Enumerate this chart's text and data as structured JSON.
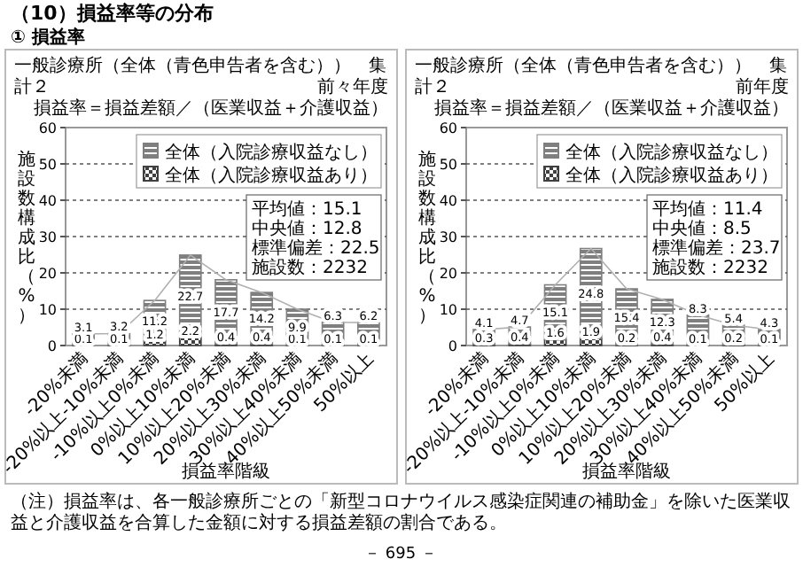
{
  "chart_data": [
    {
      "type": "bar",
      "title": "一般診療所（全体（青色申告者を含む））　集計２",
      "subtitle": "前々年度",
      "xlabel": "損益率階級",
      "ylabel": "施設数構成比（%）",
      "categories": [
        "-20%未満",
        "-20%以上-10%未満",
        "-10%以上0%未満",
        "0%以上10%未満",
        "10%以上20%未満",
        "20%以上30%未満",
        "30%以上40%未満",
        "40%以上50%未満",
        "50%以上"
      ],
      "stacked": true,
      "data_labels": true,
      "legend": "top right",
      "grid": "y",
      "ylim": [
        0,
        60
      ],
      "yticks": [
        0,
        10,
        20,
        30,
        40,
        50,
        60
      ],
      "series": [
        {
          "name": "全体（入院診療収益あり）",
          "color": "#404040",
          "values": [
            0.1,
            0.1,
            1.2,
            2.2,
            0.4,
            0.4,
            0.1,
            0.1,
            0.1
          ]
        },
        {
          "name": "全体（入院診療収益なし）",
          "color": "#7f7f7f",
          "values": [
            3.1,
            3.2,
            11.2,
            22.7,
            17.7,
            14.2,
            9.9,
            6.3,
            6.2
          ]
        },
        {
          "type": "line",
          "color": "#b0b0b0",
          "values": [
            3.2,
            3.3,
            12.4,
            24.9,
            18.1,
            14.6,
            10.0,
            6.4,
            6.3
          ],
          "value_labels": [
            null,
            null,
            null,
            null,
            null,
            null,
            null,
            null,
            null
          ]
        }
      ],
      "annotations": [
        "（10）損益率等の分布",
        "① 損益率",
        "損益率＝損益差額／（医業収益＋介護収益）",
        "平均値：15.1",
        "中央値：12.8",
        "標準偏差：22.5",
        "施設数：2232",
        "（注）損益率は、各一般診療所ごとの「新型コロナウイルス感染症関連の補助金」を除いた医業収益と介護収益を合算した金額に対する損益差額の割合である。",
        "－ 695 －"
      ]
    },
    {
      "type": "bar",
      "title": "一般診療所（全体（青色申告者を含む））　集計２",
      "subtitle": "前年度",
      "xlabel": "損益率階級",
      "ylabel": "施設数構成比（%）",
      "categories": [
        "-20%未満",
        "-20%以上-10%未満",
        "-10%以上0%未満",
        "0%以上10%未満",
        "10%以上20%未満",
        "20%以上30%未満",
        "30%以上40%未満",
        "40%以上50%未満",
        "50%以上"
      ],
      "stacked": true,
      "data_labels": true,
      "legend": "top right",
      "grid": "y",
      "ylim": [
        0,
        60
      ],
      "yticks": [
        0,
        10,
        20,
        30,
        40,
        50,
        60
      ],
      "series": [
        {
          "name": "全体（入院診療収益あり）",
          "color": "#404040",
          "values": [
            0.3,
            0.4,
            1.6,
            1.9,
            0.2,
            0.4,
            0.1,
            0.2,
            0.1
          ]
        },
        {
          "name": "全体（入院診療収益なし）",
          "color": "#7f7f7f",
          "values": [
            4.1,
            4.7,
            15.1,
            24.8,
            15.4,
            12.3,
            8.3,
            5.4,
            4.3
          ]
        },
        {
          "type": "line",
          "color": "#b0b0b0",
          "values": [
            4.4,
            5.1,
            16.7,
            26.7,
            15.6,
            12.7,
            8.4,
            5.6,
            4.4
          ],
          "value_labels": [
            null,
            null,
            null,
            null,
            null,
            null,
            null,
            null,
            null
          ]
        }
      ],
      "annotations": [
        "損益率＝損益差額／（医業収益＋介護収益）",
        "平均値：11.4",
        "中央値：8.5",
        "標準偏差：23.7",
        "施設数：2232"
      ]
    }
  ]
}
